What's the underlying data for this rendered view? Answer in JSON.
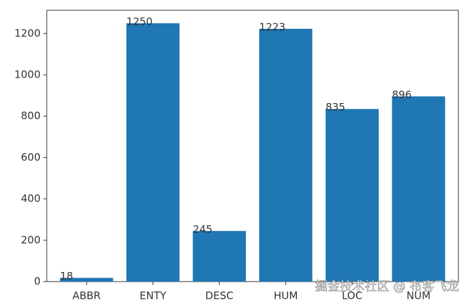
{
  "chart_data": {
    "type": "bar",
    "categories": [
      "ABBR",
      "ENTY",
      "DESC",
      "HUM",
      "LOC",
      "NUM"
    ],
    "values": [
      18,
      1250,
      245,
      1223,
      835,
      896
    ],
    "color": "#1f77b4",
    "ylim": [
      0,
      1312.5
    ],
    "yticks": [
      0,
      200,
      400,
      600,
      800,
      1000,
      1200
    ],
    "grid": false,
    "watermark": "掘金技术社区 @ 布客飞龙"
  }
}
